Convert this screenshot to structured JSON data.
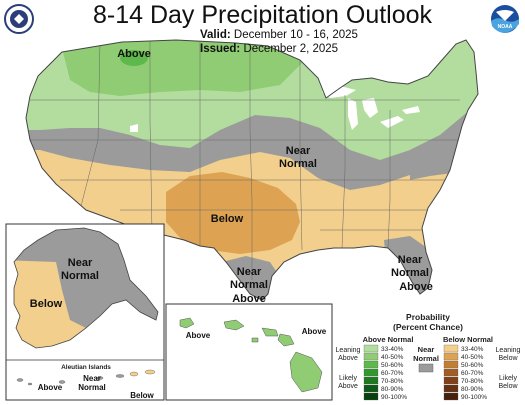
{
  "header": {
    "title": "8-14 Day Precipitation Outlook",
    "valid_label": "Valid:",
    "valid_value": "December 10 - 16, 2025",
    "issued_label": "Issued:",
    "issued_value": "December 2, 2025",
    "left_logo_icon": "usda-seal-icon",
    "right_logo_icon": "noaa-logo-icon",
    "right_logo_text": "NOAA"
  },
  "map": {
    "region_labels": {
      "above_north": "Above",
      "near_normal_central_1": "Near",
      "near_normal_central_2": "Normal",
      "below_south": "Below",
      "near_normal_texas_1": "Near",
      "near_normal_texas_2": "Normal",
      "near_normal_texas_3": "Above",
      "near_normal_florida_1": "Near",
      "near_normal_florida_2": "Normal",
      "near_normal_florida_3": "Above"
    },
    "alaska": {
      "near_normal_1": "Near",
      "near_normal_2": "Normal",
      "below": "Below",
      "aleutian_title": "Aleutian Islands",
      "aleutian_above": "Above",
      "aleutian_near_1": "Near",
      "aleutian_near_2": "Normal",
      "aleutian_below": "Below"
    },
    "hawaii": {
      "above_west": "Above",
      "above_east": "Above"
    }
  },
  "legend": {
    "title_1": "Probability",
    "title_2": "(Percent Chance)",
    "above_header": "Above Normal",
    "near_header_1": "Near",
    "near_header_2": "Normal",
    "below_header": "Below Normal",
    "leaning_above_1": "Leaning",
    "leaning_above_2": "Above",
    "likely_above_1": "Likely",
    "likely_above_2": "Above",
    "leaning_below_1": "Leaning",
    "leaning_below_2": "Below",
    "likely_below_1": "Likely",
    "likely_below_2": "Below",
    "above_bins": [
      "33-40%",
      "40-50%",
      "50-60%",
      "60-70%",
      "70-80%",
      "80-90%",
      "90-100%"
    ],
    "below_bins": [
      "33-40%",
      "40-50%",
      "50-60%",
      "60-70%",
      "70-80%",
      "80-90%",
      "90-100%"
    ],
    "above_colors": [
      "#b3dd9f",
      "#8fcc73",
      "#5fb84b",
      "#2f9a2b",
      "#1d7a20",
      "#0f5a18",
      "#08400f"
    ],
    "below_colors": [
      "#f2cf8c",
      "#dda352",
      "#c27e33",
      "#a25c24",
      "#82401a",
      "#663013",
      "#46200c"
    ],
    "near_color": "#9b9b9b"
  },
  "colors": {
    "above_33_40": "#b3dd9f",
    "above_40_50": "#8fcc73",
    "below_33_40": "#f2cf8c",
    "below_40_50": "#dda352",
    "near_normal": "#9b9b9b",
    "water": "#ffffff",
    "border": "#555555"
  }
}
